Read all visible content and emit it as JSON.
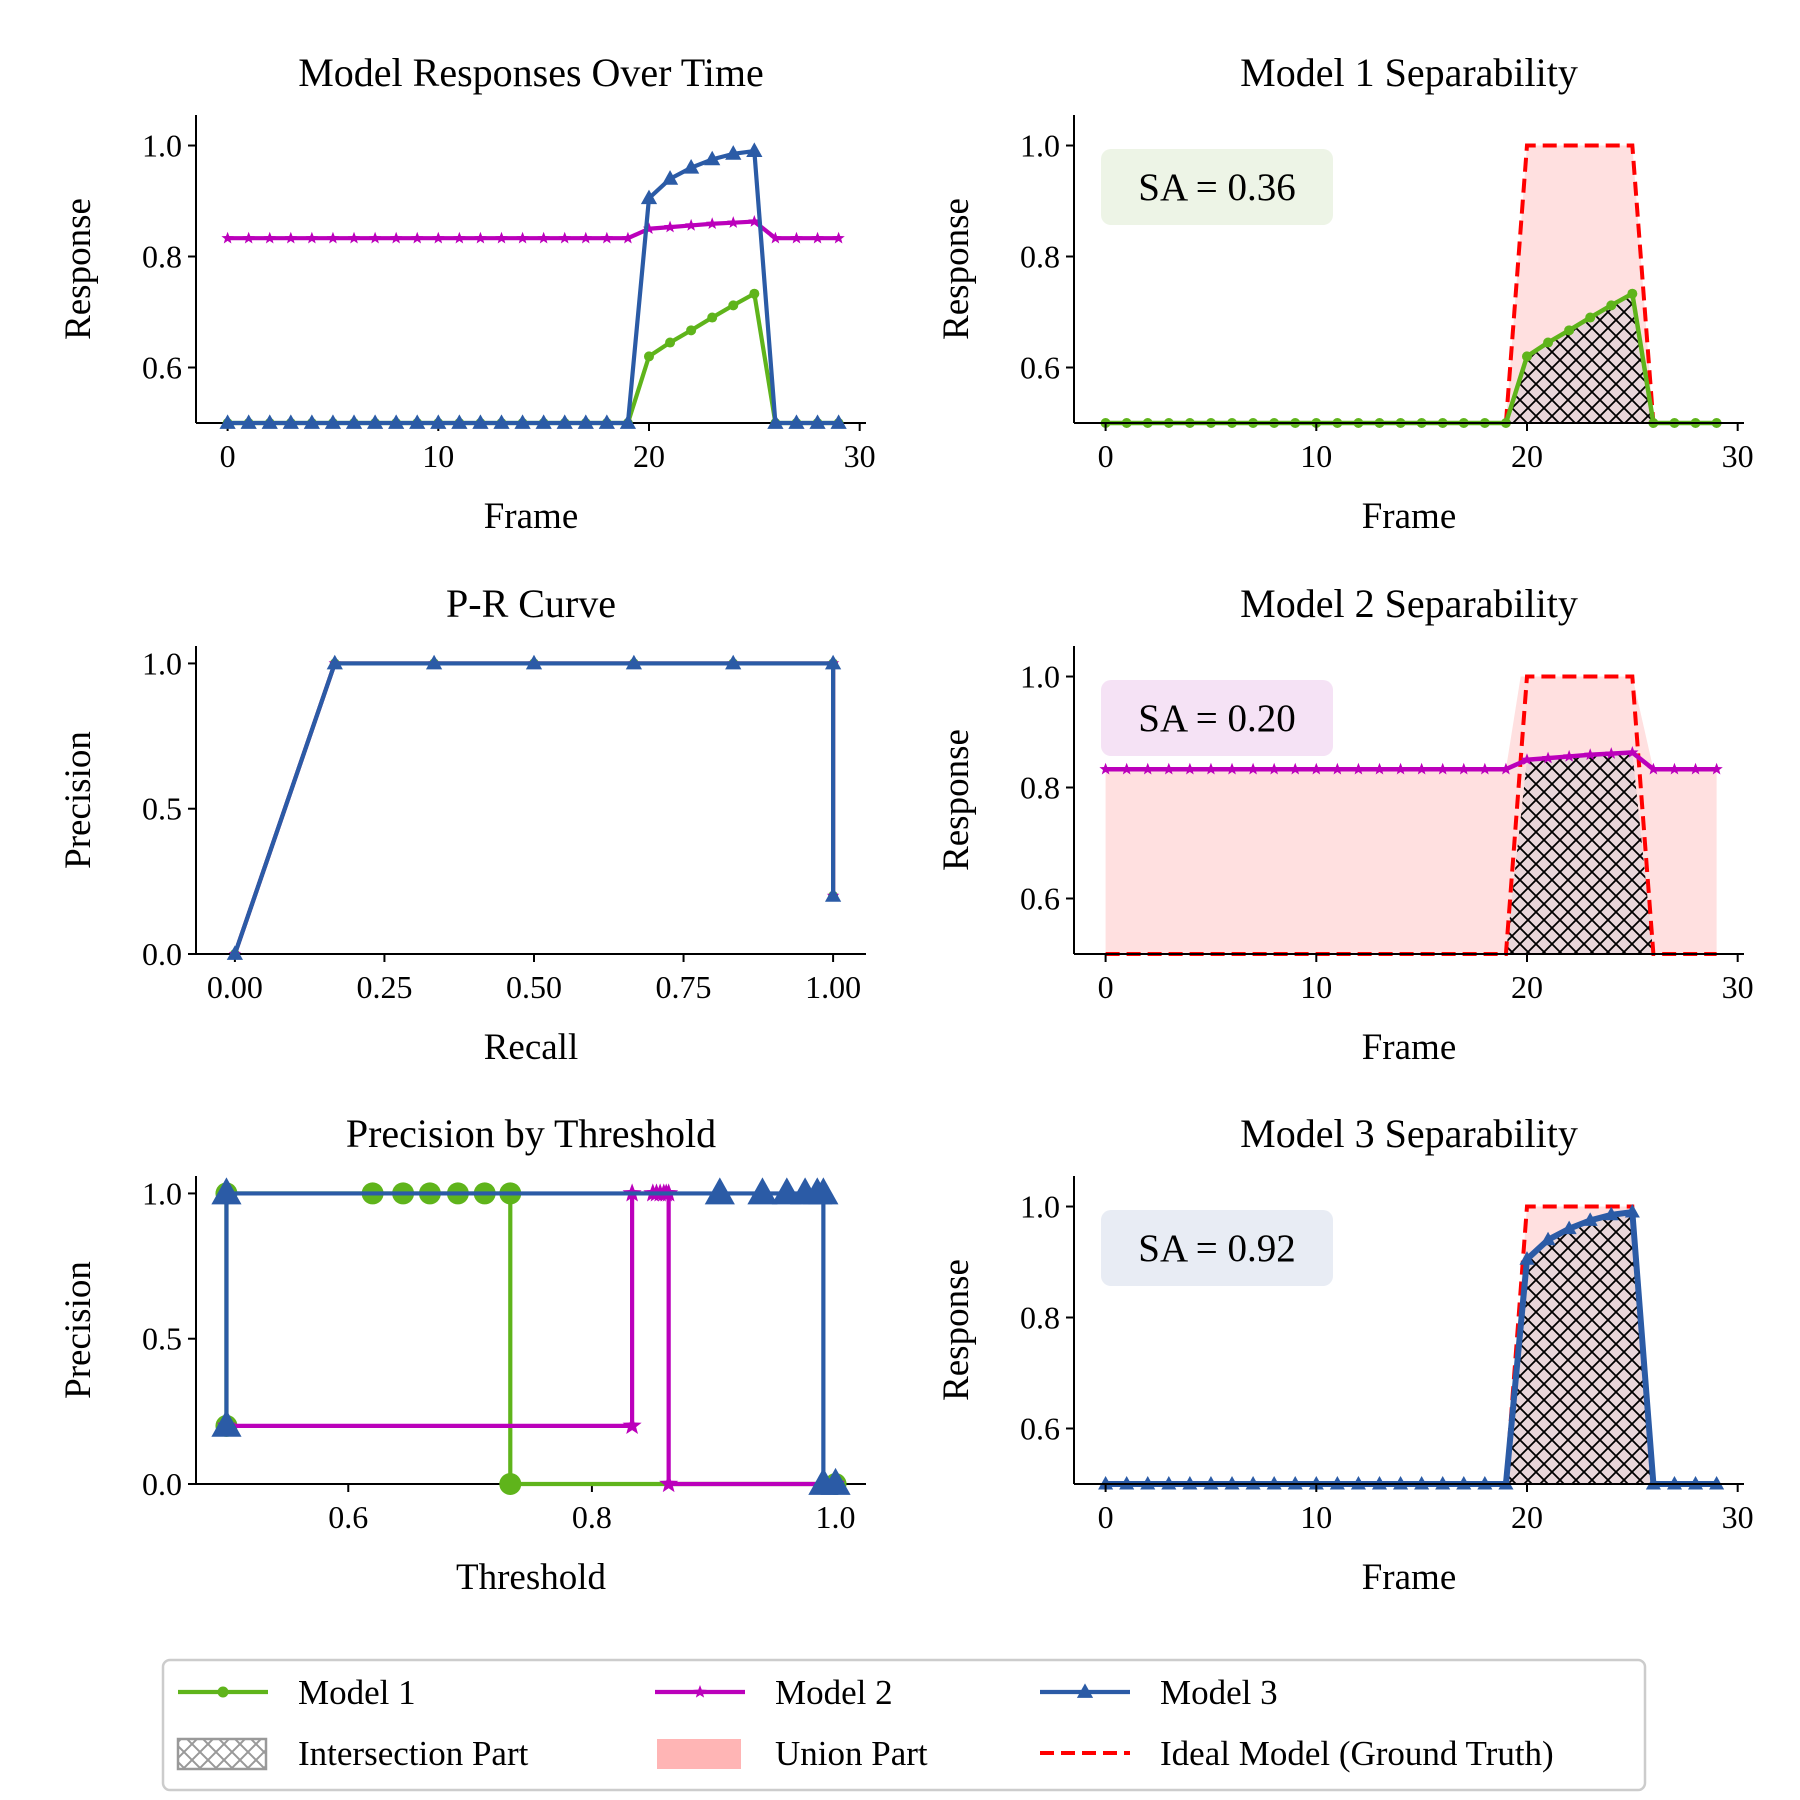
{
  "colors": {
    "model1": "#5fb41b",
    "model2": "#bb00bb",
    "model3": "#2b5ba6",
    "ideal": "#ff0000",
    "union": "#ffb5b5",
    "hatch": "#000000"
  },
  "chart_data": [
    {
      "id": "responses",
      "type": "line",
      "title": "Model Responses Over Time",
      "xlabel": "Frame",
      "ylabel": "Response",
      "xlim": [
        -1.5,
        30.3
      ],
      "ylim": [
        0.5,
        1.055
      ],
      "xticks": [
        0,
        10,
        20,
        30
      ],
      "yticks": [
        0.6,
        0.8,
        1.0
      ],
      "xtick_labels": [
        "0",
        "10",
        "20",
        "30"
      ],
      "ytick_labels": [
        "0.6",
        "0.8",
        "1.0"
      ],
      "series": [
        {
          "name": "Model 1",
          "color_key": "model1",
          "marker": "circle",
          "x": [
            0,
            1,
            2,
            3,
            4,
            5,
            6,
            7,
            8,
            9,
            10,
            11,
            12,
            13,
            14,
            15,
            16,
            17,
            18,
            19,
            20,
            21,
            22,
            23,
            24,
            25,
            26,
            27,
            28,
            29
          ],
          "y": [
            0.5,
            0.5,
            0.5,
            0.5,
            0.5,
            0.5,
            0.5,
            0.5,
            0.5,
            0.5,
            0.5,
            0.5,
            0.5,
            0.5,
            0.5,
            0.5,
            0.5,
            0.5,
            0.5,
            0.5,
            0.62,
            0.645,
            0.667,
            0.69,
            0.712,
            0.733,
            0.5,
            0.5,
            0.5,
            0.5
          ]
        },
        {
          "name": "Model 2",
          "color_key": "model2",
          "marker": "star",
          "x": [
            0,
            1,
            2,
            3,
            4,
            5,
            6,
            7,
            8,
            9,
            10,
            11,
            12,
            13,
            14,
            15,
            16,
            17,
            18,
            19,
            20,
            21,
            22,
            23,
            24,
            25,
            26,
            27,
            28,
            29
          ],
          "y": [
            0.833,
            0.833,
            0.833,
            0.833,
            0.833,
            0.833,
            0.833,
            0.833,
            0.833,
            0.833,
            0.833,
            0.833,
            0.833,
            0.833,
            0.833,
            0.833,
            0.833,
            0.833,
            0.833,
            0.833,
            0.85,
            0.853,
            0.856,
            0.859,
            0.861,
            0.863,
            0.833,
            0.833,
            0.833,
            0.833
          ]
        },
        {
          "name": "Model 3",
          "color_key": "model3",
          "marker": "triangle",
          "x": [
            0,
            1,
            2,
            3,
            4,
            5,
            6,
            7,
            8,
            9,
            10,
            11,
            12,
            13,
            14,
            15,
            16,
            17,
            18,
            19,
            20,
            21,
            22,
            23,
            24,
            25,
            26,
            27,
            28,
            29
          ],
          "y": [
            0.5,
            0.5,
            0.5,
            0.5,
            0.5,
            0.5,
            0.5,
            0.5,
            0.5,
            0.5,
            0.5,
            0.5,
            0.5,
            0.5,
            0.5,
            0.5,
            0.5,
            0.5,
            0.5,
            0.5,
            0.905,
            0.94,
            0.96,
            0.975,
            0.985,
            0.99,
            0.5,
            0.5,
            0.5,
            0.5
          ]
        }
      ]
    },
    {
      "id": "sep1",
      "type": "area",
      "title": "Model 1 Separability",
      "xlabel": "Frame",
      "ylabel": "Response",
      "annotation": "SA = 0.36",
      "annotation_bg": "#edf4e6",
      "xlim": [
        -1.5,
        30.3
      ],
      "ylim": [
        0.5,
        1.055
      ],
      "xticks": [
        0,
        10,
        20,
        30
      ],
      "yticks": [
        0.6,
        0.8,
        1.0
      ],
      "xtick_labels": [
        "0",
        "10",
        "20",
        "30"
      ],
      "ytick_labels": [
        "0.6",
        "0.8",
        "1.0"
      ],
      "model_color_key": "model1",
      "marker": "circle",
      "line_width": 4.5,
      "union_full": false,
      "ideal": {
        "x": [
          19,
          20,
          25,
          26
        ],
        "y": [
          0.5,
          1.0,
          1.0,
          0.5
        ]
      },
      "model": {
        "x": [
          0,
          1,
          2,
          3,
          4,
          5,
          6,
          7,
          8,
          9,
          10,
          11,
          12,
          13,
          14,
          15,
          16,
          17,
          18,
          19,
          20,
          21,
          22,
          23,
          24,
          25,
          26,
          27,
          28,
          29
        ],
        "y": [
          0.5,
          0.5,
          0.5,
          0.5,
          0.5,
          0.5,
          0.5,
          0.5,
          0.5,
          0.5,
          0.5,
          0.5,
          0.5,
          0.5,
          0.5,
          0.5,
          0.5,
          0.5,
          0.5,
          0.5,
          0.62,
          0.645,
          0.667,
          0.69,
          0.712,
          0.733,
          0.5,
          0.5,
          0.5,
          0.5
        ]
      }
    },
    {
      "id": "pr",
      "type": "line",
      "title": "P-R Curve",
      "xlabel": "Recall",
      "ylabel": "Precision",
      "xlim": [
        -0.065,
        1.055
      ],
      "ylim": [
        0.0,
        1.06
      ],
      "xticks": [
        0.0,
        0.25,
        0.5,
        0.75,
        1.0
      ],
      "yticks": [
        0.0,
        0.5,
        1.0
      ],
      "xtick_labels": [
        "0.00",
        "0.25",
        "0.50",
        "0.75",
        "1.00"
      ],
      "ytick_labels": [
        "0.0",
        "0.5",
        "1.0"
      ],
      "series": [
        {
          "name": "Model 1",
          "color_key": "model1",
          "marker": "circle",
          "x": [
            0.0,
            0.167,
            0.333,
            0.5,
            0.667,
            0.833,
            1.0,
            1.0
          ],
          "y": [
            0.0,
            1.0,
            1.0,
            1.0,
            1.0,
            1.0,
            1.0,
            0.2
          ]
        },
        {
          "name": "Model 2",
          "color_key": "model2",
          "marker": "star",
          "x": [
            0.0,
            0.167,
            0.333,
            0.5,
            0.667,
            0.833,
            1.0,
            1.0
          ],
          "y": [
            0.0,
            1.0,
            1.0,
            1.0,
            1.0,
            1.0,
            1.0,
            0.2
          ]
        },
        {
          "name": "Model 3",
          "color_key": "model3",
          "marker": "triangle",
          "x": [
            0.0,
            0.167,
            0.333,
            0.5,
            0.667,
            0.833,
            1.0,
            1.0
          ],
          "y": [
            0.0,
            1.0,
            1.0,
            1.0,
            1.0,
            1.0,
            1.0,
            0.2
          ]
        }
      ]
    },
    {
      "id": "sep2",
      "type": "area",
      "title": "Model 2 Separability",
      "xlabel": "Frame",
      "ylabel": "Response",
      "annotation": "SA = 0.20",
      "annotation_bg": "#f5e2f5",
      "xlim": [
        -1.5,
        30.3
      ],
      "ylim": [
        0.5,
        1.055
      ],
      "xticks": [
        0,
        10,
        20,
        30
      ],
      "yticks": [
        0.6,
        0.8,
        1.0
      ],
      "xtick_labels": [
        "0",
        "10",
        "20",
        "30"
      ],
      "ytick_labels": [
        "0.6",
        "0.8",
        "1.0"
      ],
      "model_color_key": "model2",
      "marker": "star",
      "line_width": 4.5,
      "union_full": true,
      "ideal": {
        "x": [
          0,
          19,
          20,
          25,
          26,
          29
        ],
        "y": [
          0.5,
          0.5,
          1.0,
          1.0,
          0.5,
          0.5
        ]
      },
      "model": {
        "x": [
          0,
          1,
          2,
          3,
          4,
          5,
          6,
          7,
          8,
          9,
          10,
          11,
          12,
          13,
          14,
          15,
          16,
          17,
          18,
          19,
          20,
          21,
          22,
          23,
          24,
          25,
          26,
          27,
          28,
          29
        ],
        "y": [
          0.833,
          0.833,
          0.833,
          0.833,
          0.833,
          0.833,
          0.833,
          0.833,
          0.833,
          0.833,
          0.833,
          0.833,
          0.833,
          0.833,
          0.833,
          0.833,
          0.833,
          0.833,
          0.833,
          0.833,
          0.85,
          0.853,
          0.856,
          0.859,
          0.861,
          0.863,
          0.833,
          0.833,
          0.833,
          0.833
        ]
      }
    },
    {
      "id": "thresh",
      "type": "line",
      "title": "Precision by Threshold",
      "xlabel": "Threshold",
      "ylabel": "Precision",
      "xlim": [
        0.475,
        1.025
      ],
      "ylim": [
        0.0,
        1.06
      ],
      "xticks": [
        0.6,
        0.8,
        1.0
      ],
      "yticks": [
        0.0,
        0.5,
        1.0
      ],
      "xtick_labels": [
        "0.6",
        "0.8",
        "1.0"
      ],
      "ytick_labels": [
        "0.0",
        "0.5",
        "1.0"
      ],
      "series": [
        {
          "name": "Model 1",
          "color_key": "model1",
          "marker": "circle",
          "marker_size": 11,
          "x": [
            0.5,
            0.5,
            0.62,
            0.645,
            0.667,
            0.69,
            0.712,
            0.733,
            0.733,
            1.0
          ],
          "y": [
            0.2,
            1.0,
            1.0,
            1.0,
            1.0,
            1.0,
            1.0,
            1.0,
            0.0,
            0.0
          ]
        },
        {
          "name": "Model 2",
          "color_key": "model2",
          "marker": "star",
          "marker_size": 10,
          "x": [
            0.5,
            0.833,
            0.833,
            0.85,
            0.853,
            0.856,
            0.859,
            0.861,
            0.863,
            0.863,
            1.0
          ],
          "y": [
            0.2,
            0.2,
            1.0,
            1.0,
            1.0,
            1.0,
            1.0,
            1.0,
            1.0,
            0.0,
            0.0
          ]
        },
        {
          "name": "Model 3",
          "color_key": "model3",
          "marker": "triangle",
          "marker_size": 13,
          "x": [
            0.5,
            0.5,
            0.905,
            0.94,
            0.96,
            0.975,
            0.985,
            0.99,
            0.99,
            1.0
          ],
          "y": [
            0.2,
            1.0,
            1.0,
            1.0,
            1.0,
            1.0,
            1.0,
            1.0,
            0.0,
            0.0
          ]
        }
      ]
    },
    {
      "id": "sep3",
      "type": "area",
      "title": "Model 3 Separability",
      "xlabel": "Frame",
      "ylabel": "Response",
      "annotation": "SA = 0.92",
      "annotation_bg": "#e8ecf4",
      "xlim": [
        -1.5,
        30.3
      ],
      "ylim": [
        0.5,
        1.055
      ],
      "xticks": [
        0,
        10,
        20,
        30
      ],
      "yticks": [
        0.6,
        0.8,
        1.0
      ],
      "xtick_labels": [
        "0",
        "10",
        "20",
        "30"
      ],
      "ytick_labels": [
        "0.6",
        "0.8",
        "1.0"
      ],
      "model_color_key": "model3",
      "marker": "triangle",
      "line_width": 6,
      "union_full": false,
      "ideal": {
        "x": [
          19,
          20,
          25,
          26
        ],
        "y": [
          0.5,
          1.0,
          1.0,
          0.5
        ]
      },
      "model": {
        "x": [
          0,
          1,
          2,
          3,
          4,
          5,
          6,
          7,
          8,
          9,
          10,
          11,
          12,
          13,
          14,
          15,
          16,
          17,
          18,
          19,
          20,
          21,
          22,
          23,
          24,
          25,
          26,
          27,
          28,
          29
        ],
        "y": [
          0.5,
          0.5,
          0.5,
          0.5,
          0.5,
          0.5,
          0.5,
          0.5,
          0.5,
          0.5,
          0.5,
          0.5,
          0.5,
          0.5,
          0.5,
          0.5,
          0.5,
          0.5,
          0.5,
          0.5,
          0.905,
          0.94,
          0.96,
          0.975,
          0.985,
          0.99,
          0.5,
          0.5,
          0.5,
          0.5
        ]
      }
    }
  ],
  "legend": {
    "placement": "bottom-center",
    "columns": 3,
    "items": [
      {
        "label": "Model 1",
        "kind": "line-marker",
        "color_key": "model1",
        "marker": "circle"
      },
      {
        "label": "Model 2",
        "kind": "line-marker",
        "color_key": "model2",
        "marker": "star"
      },
      {
        "label": "Model 3",
        "kind": "line-marker",
        "color_key": "model3",
        "marker": "triangle"
      },
      {
        "label": "Intersection Part",
        "kind": "hatch-patch",
        "color_key": "hatch"
      },
      {
        "label": "Union Part",
        "kind": "fill-patch",
        "color_key": "union"
      },
      {
        "label": "Ideal Model (Ground Truth)",
        "kind": "dashed-line",
        "color_key": "ideal"
      }
    ]
  }
}
